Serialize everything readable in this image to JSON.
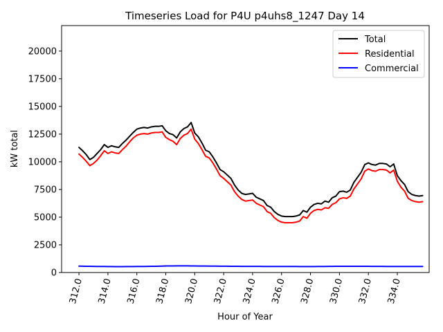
{
  "chart_data": {
    "type": "line",
    "title": "Timeseries Load for P4U p4uhs8_1247  Day 14",
    "xlabel": "Hour of Year",
    "ylabel": "kW total",
    "xlim": [
      310.8,
      336.2
    ],
    "ylim": [
      0,
      22300
    ],
    "x_ticks": [
      312,
      314,
      316,
      318,
      320,
      322,
      324,
      326,
      328,
      330,
      332,
      334
    ],
    "x_tick_labels": [
      "312.0",
      "314.0",
      "316.0",
      "318.0",
      "320.0",
      "322.0",
      "324.0",
      "326.0",
      "328.0",
      "330.0",
      "332.0",
      "334.0"
    ],
    "y_ticks": [
      0,
      2500,
      5000,
      7500,
      10000,
      12500,
      15000,
      17500,
      20000
    ],
    "y_tick_labels": [
      "0",
      "2500",
      "5000",
      "7500",
      "10000",
      "12500",
      "15000",
      "17500",
      "20000"
    ],
    "grid": false,
    "legend_position": "top-right",
    "x": [
      312.0,
      312.25,
      312.5,
      312.75,
      313.0,
      313.25,
      313.5,
      313.75,
      314.0,
      314.25,
      314.5,
      314.75,
      315.0,
      315.25,
      315.5,
      315.75,
      316.0,
      316.25,
      316.5,
      316.75,
      317.0,
      317.25,
      317.5,
      317.75,
      318.0,
      318.25,
      318.5,
      318.75,
      319.0,
      319.25,
      319.5,
      319.75,
      320.0,
      320.25,
      320.5,
      320.75,
      321.0,
      321.25,
      321.5,
      321.75,
      322.0,
      322.25,
      322.5,
      322.75,
      323.0,
      323.25,
      323.5,
      323.75,
      324.0,
      324.25,
      324.5,
      324.75,
      325.0,
      325.25,
      325.5,
      325.75,
      326.0,
      326.25,
      326.5,
      326.75,
      327.0,
      327.25,
      327.5,
      327.75,
      328.0,
      328.25,
      328.5,
      328.75,
      329.0,
      329.25,
      329.5,
      329.75,
      330.0,
      330.25,
      330.5,
      330.75,
      331.0,
      331.25,
      331.5,
      331.75,
      332.0,
      332.25,
      332.5,
      332.75,
      333.0,
      333.25,
      333.5,
      333.75,
      334.0,
      334.25,
      334.5,
      334.75,
      335.0,
      335.25,
      335.5,
      335.75
    ],
    "series": [
      {
        "name": "Total",
        "color": "#000000",
        "values": [
          11300,
          11000,
          10650,
          10200,
          10400,
          10750,
          11100,
          11550,
          11300,
          11450,
          11350,
          11300,
          11650,
          11950,
          12300,
          12650,
          12950,
          13050,
          13100,
          13050,
          13150,
          13200,
          13200,
          13250,
          12800,
          12550,
          12450,
          12150,
          12700,
          13000,
          13150,
          13550,
          12600,
          12250,
          11700,
          11050,
          10900,
          10450,
          9900,
          9300,
          9100,
          8800,
          8500,
          7900,
          7450,
          7150,
          7050,
          7100,
          7150,
          6800,
          6650,
          6500,
          6050,
          5900,
          5500,
          5250,
          5100,
          5050,
          5050,
          5050,
          5100,
          5200,
          5600,
          5450,
          5900,
          6150,
          6250,
          6200,
          6450,
          6350,
          6750,
          6900,
          7300,
          7350,
          7250,
          7450,
          8150,
          8600,
          9050,
          9750,
          9900,
          9750,
          9700,
          9850,
          9850,
          9800,
          9550,
          9800,
          8750,
          8300,
          7950,
          7300,
          7050,
          6950,
          6900,
          6950
        ]
      },
      {
        "name": "Residential",
        "color": "#ff0000",
        "values": [
          10700,
          10400,
          10050,
          9650,
          9850,
          10150,
          10550,
          11000,
          10750,
          10900,
          10800,
          10750,
          11100,
          11400,
          11800,
          12150,
          12400,
          12500,
          12550,
          12500,
          12600,
          12650,
          12650,
          12700,
          12200,
          12000,
          11850,
          11550,
          12100,
          12400,
          12550,
          12950,
          12050,
          11650,
          11100,
          10500,
          10350,
          9900,
          9350,
          8750,
          8500,
          8200,
          7900,
          7300,
          6900,
          6600,
          6450,
          6500,
          6550,
          6250,
          6100,
          5950,
          5500,
          5350,
          4950,
          4700,
          4550,
          4500,
          4500,
          4500,
          4550,
          4650,
          5050,
          4900,
          5350,
          5600,
          5700,
          5650,
          5850,
          5800,
          6150,
          6300,
          6650,
          6750,
          6700,
          6900,
          7550,
          8000,
          8450,
          9150,
          9350,
          9200,
          9150,
          9300,
          9300,
          9250,
          9000,
          9250,
          8250,
          7700,
          7350,
          6700,
          6500,
          6400,
          6350,
          6400
        ]
      },
      {
        "name": "Commercial",
        "color": "#0000ff",
        "values": [
          580,
          570,
          565,
          560,
          555,
          550,
          548,
          545,
          540,
          538,
          535,
          535,
          535,
          538,
          540,
          542,
          545,
          548,
          550,
          555,
          560,
          565,
          570,
          580,
          590,
          592,
          595,
          598,
          600,
          600,
          598,
          595,
          590,
          588,
          585,
          582,
          580,
          578,
          575,
          572,
          570,
          568,
          565,
          562,
          560,
          558,
          556,
          555,
          555,
          553,
          552,
          550,
          550,
          549,
          548,
          547,
          546,
          545,
          545,
          544,
          543,
          542,
          540,
          540,
          540,
          542,
          545,
          548,
          550,
          555,
          558,
          560,
          560,
          560,
          560,
          560,
          560,
          560,
          560,
          560,
          560,
          558,
          556,
          554,
          552,
          550,
          550,
          550,
          550,
          550,
          550,
          550,
          550,
          550,
          550,
          550
        ]
      }
    ]
  }
}
